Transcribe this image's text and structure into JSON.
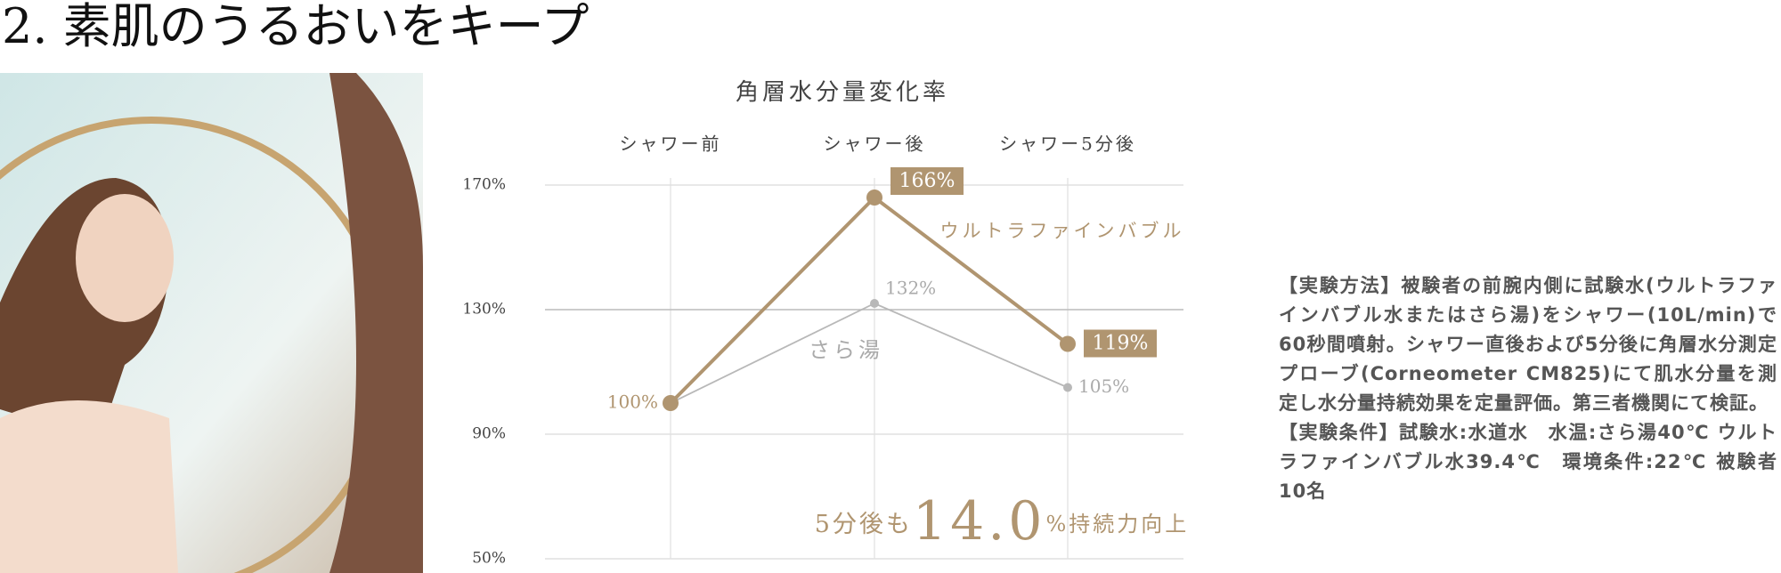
{
  "heading": "2. 素肌のうるおいをキープ",
  "chart_data": {
    "type": "line",
    "title": "角層水分量変化率",
    "categories": [
      "シャワー前",
      "シャワー後",
      "シャワー5分後"
    ],
    "series": [
      {
        "name": "ウルトラファインバブル",
        "color": "#b09570",
        "values": [
          100,
          166,
          119
        ],
        "value_labels": [
          "100%",
          "166%",
          "119%"
        ]
      },
      {
        "name": "さら湯",
        "color": "#b8b8b8",
        "values": [
          100,
          132,
          105
        ],
        "value_labels": [
          null,
          "132%",
          "105%"
        ]
      }
    ],
    "ylim": [
      50,
      170
    ],
    "yticks": [
      {
        "value": 50,
        "label": "50%"
      },
      {
        "value": 90,
        "label": "90%"
      },
      {
        "value": 130,
        "label": "130%"
      },
      {
        "value": 170,
        "label": "170%"
      }
    ],
    "grid": true,
    "annotation": [
      "5分後も",
      "14.0",
      "%持続力向上"
    ]
  },
  "notes": [
    "【実験方法】被験者の前腕内側に試験水(ウルトラファインバブル水またはさら湯)をシャワー(10L/min)で60秒間噴射。シャワー直後および5分後に角層水分測定プローブ(Corneometer CM825)にて肌水分量を測定し水分量持続効果を定量評価。第三者機関にて検証。",
    "【実験条件】試験水:水道水　水温:さら湯40℃ ウルトラファインバブル水39.4℃　環境条件:22℃ 被験者10名"
  ]
}
